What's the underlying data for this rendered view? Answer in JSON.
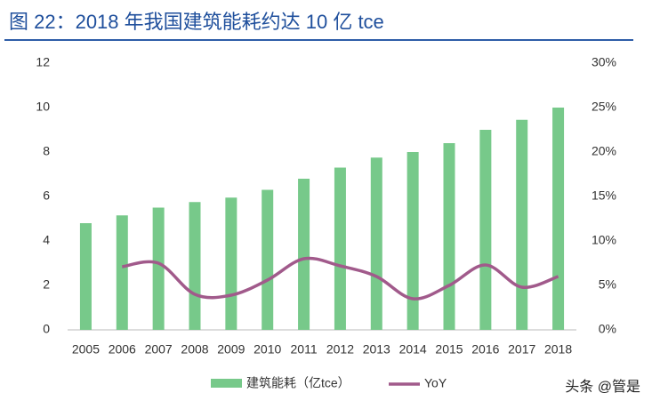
{
  "chart_data": {
    "type": "bar-line",
    "title": "图 22：2018 年我国建筑能耗约达 10 亿 tce",
    "categories": [
      "2005",
      "2006",
      "2007",
      "2008",
      "2009",
      "2010",
      "2011",
      "2012",
      "2013",
      "2014",
      "2015",
      "2016",
      "2017",
      "2018"
    ],
    "series": [
      {
        "name": "建筑能耗（亿tce）",
        "type": "bar",
        "color": "#77c98a",
        "values": [
          4.8,
          5.15,
          5.5,
          5.75,
          5.95,
          6.3,
          6.8,
          7.3,
          7.75,
          8.0,
          8.4,
          9.0,
          9.45,
          10.0
        ]
      },
      {
        "name": "YoY",
        "type": "line",
        "axis": "y2",
        "color": "#a15a8b",
        "values": [
          null,
          7.1,
          7.5,
          4.0,
          3.9,
          5.6,
          8.0,
          7.2,
          6.0,
          3.5,
          5.0,
          7.3,
          4.8,
          6.0
        ]
      }
    ],
    "ylim": [
      0,
      12
    ],
    "yticks": [
      0,
      2,
      4,
      6,
      8,
      10,
      12
    ],
    "y2lim": [
      0,
      30
    ],
    "y2ticks": [
      {
        "value": 0,
        "label": "0%"
      },
      {
        "value": 5,
        "label": "5%"
      },
      {
        "value": 10,
        "label": "10%"
      },
      {
        "value": 15,
        "label": "15%"
      },
      {
        "value": 20,
        "label": "20%"
      },
      {
        "value": 25,
        "label": "25%"
      },
      {
        "value": 30,
        "label": "30%"
      }
    ],
    "grid": false,
    "legend": "bottom"
  },
  "watermark": "头条 @管是"
}
